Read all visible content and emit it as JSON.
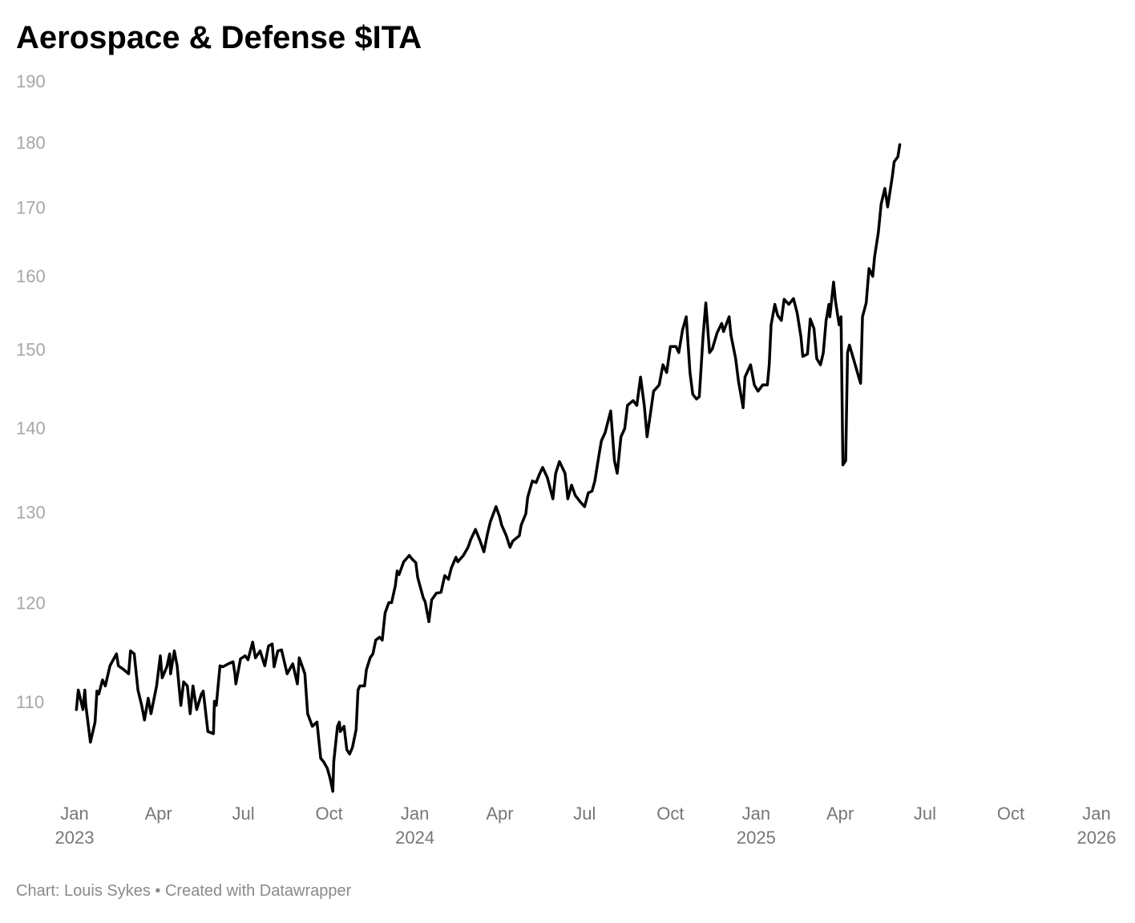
{
  "chart_data": {
    "type": "line",
    "title": "Aerospace & Defense $ITA",
    "footer": "Chart: Louis Sykes • Created with Datawrapper",
    "color": "#000000",
    "log_y": true,
    "grid": false,
    "xlim": [
      "2023-01",
      "2026-01"
    ],
    "xticks": [
      {
        "value": "2023-01",
        "label": "Jan\n2023"
      },
      {
        "value": "2023-04",
        "label": "Apr"
      },
      {
        "value": "2023-07",
        "label": "Jul"
      },
      {
        "value": "2023-10",
        "label": "Oct"
      },
      {
        "value": "2024-01",
        "label": "Jan\n2024"
      },
      {
        "value": "2024-04",
        "label": "Apr"
      },
      {
        "value": "2024-07",
        "label": "Jul"
      },
      {
        "value": "2024-10",
        "label": "Oct"
      },
      {
        "value": "2025-01",
        "label": "Jan\n2025"
      },
      {
        "value": "2025-04",
        "label": "Apr"
      },
      {
        "value": "2025-07",
        "label": "Jul"
      },
      {
        "value": "2025-10",
        "label": "Oct"
      },
      {
        "value": "2026-01",
        "label": "Jan\n2026"
      }
    ],
    "ylim": [
      101,
      190
    ],
    "yticks": [
      110,
      120,
      130,
      140,
      150,
      160,
      170,
      180,
      190
    ],
    "x": [
      "2023-01-03",
      "2023-01-05",
      "2023-01-10",
      "2023-01-12",
      "2023-01-13",
      "2023-01-18",
      "2023-01-23",
      "2023-01-25",
      "2023-01-27",
      "2023-01-31",
      "2023-02-03",
      "2023-02-08",
      "2023-02-15",
      "2023-02-17",
      "2023-02-23",
      "2023-02-28",
      "2023-03-02",
      "2023-03-06",
      "2023-03-10",
      "2023-03-14",
      "2023-03-17",
      "2023-03-21",
      "2023-03-24",
      "2023-03-30",
      "2023-04-03",
      "2023-04-05",
      "2023-04-10",
      "2023-04-13",
      "2023-04-14",
      "2023-04-18",
      "2023-04-21",
      "2023-04-25",
      "2023-04-28",
      "2023-05-02",
      "2023-05-05",
      "2023-05-08",
      "2023-05-12",
      "2023-05-17",
      "2023-05-19",
      "2023-05-24",
      "2023-05-30",
      "2023-05-31",
      "2023-06-02",
      "2023-06-06",
      "2023-06-09",
      "2023-06-15",
      "2023-06-20",
      "2023-06-22",
      "2023-06-23",
      "2023-06-28",
      "2023-07-03",
      "2023-07-06",
      "2023-07-11",
      "2023-07-14",
      "2023-07-19",
      "2023-07-24",
      "2023-07-28",
      "2023-08-01",
      "2023-08-03",
      "2023-08-07",
      "2023-08-11",
      "2023-08-17",
      "2023-08-23",
      "2023-08-28",
      "2023-08-30",
      "2023-09-05",
      "2023-09-08",
      "2023-09-13",
      "2023-09-18",
      "2023-09-22",
      "2023-09-25",
      "2023-09-29",
      "2023-10-02",
      "2023-10-05",
      "2023-10-06",
      "2023-10-10",
      "2023-10-12",
      "2023-10-13",
      "2023-10-17",
      "2023-10-20",
      "2023-10-23",
      "2023-10-26",
      "2023-10-30",
      "2023-11-01",
      "2023-11-03",
      "2023-11-08",
      "2023-11-10",
      "2023-11-14",
      "2023-11-17",
      "2023-11-20",
      "2023-11-24",
      "2023-11-27",
      "2023-11-30",
      "2023-12-04",
      "2023-12-07",
      "2023-12-11",
      "2023-12-13",
      "2023-12-15",
      "2023-12-20",
      "2023-12-26",
      "2023-12-29",
      "2024-01-02",
      "2024-01-04",
      "2024-01-10",
      "2024-01-12",
      "2024-01-16",
      "2024-01-19",
      "2024-01-24",
      "2024-01-29",
      "2024-02-02",
      "2024-02-06",
      "2024-02-09",
      "2024-02-14",
      "2024-02-16",
      "2024-02-22",
      "2024-02-27",
      "2024-03-01",
      "2024-03-06",
      "2024-03-11",
      "2024-03-15",
      "2024-03-19",
      "2024-03-22",
      "2024-03-28",
      "2024-04-01",
      "2024-04-03",
      "2024-04-08",
      "2024-04-12",
      "2024-04-15",
      "2024-04-22",
      "2024-04-24",
      "2024-04-29",
      "2024-05-01",
      "2024-05-06",
      "2024-05-10",
      "2024-05-14",
      "2024-05-17",
      "2024-05-22",
      "2024-05-28",
      "2024-05-31",
      "2024-06-04",
      "2024-06-10",
      "2024-06-13",
      "2024-06-17",
      "2024-06-21",
      "2024-06-26",
      "2024-07-01",
      "2024-07-05",
      "2024-07-09",
      "2024-07-12",
      "2024-07-16",
      "2024-07-19",
      "2024-07-23",
      "2024-07-29",
      "2024-08-02",
      "2024-08-05",
      "2024-08-09",
      "2024-08-13",
      "2024-08-16",
      "2024-08-22",
      "2024-08-26",
      "2024-08-30",
      "2024-09-03",
      "2024-09-06",
      "2024-09-10",
      "2024-09-13",
      "2024-09-19",
      "2024-09-23",
      "2024-09-27",
      "2024-10-01",
      "2024-10-07",
      "2024-10-10",
      "2024-10-14",
      "2024-10-18",
      "2024-10-22",
      "2024-10-25",
      "2024-10-29",
      "2024-11-01",
      "2024-11-05",
      "2024-11-08",
      "2024-11-12",
      "2024-11-15",
      "2024-11-20",
      "2024-11-25",
      "2024-11-27",
      "2024-12-03",
      "2024-12-05",
      "2024-12-10",
      "2024-12-13",
      "2024-12-18",
      "2024-12-20",
      "2024-12-26",
      "2024-12-30",
      "2025-01-03",
      "2025-01-08",
      "2025-01-13",
      "2025-01-15",
      "2025-01-17",
      "2025-01-21",
      "2025-01-24",
      "2025-01-28",
      "2025-01-31",
      "2025-02-05",
      "2025-02-10",
      "2025-02-14",
      "2025-02-18",
      "2025-02-20",
      "2025-02-25",
      "2025-02-28",
      "2025-03-04",
      "2025-03-07",
      "2025-03-11",
      "2025-03-14",
      "2025-03-17",
      "2025-03-20",
      "2025-03-21",
      "2025-03-25",
      "2025-03-27",
      "2025-03-31",
      "2025-04-02",
      "2025-04-04",
      "2025-04-07",
      "2025-04-09",
      "2025-04-11",
      "2025-04-16",
      "2025-04-21",
      "2025-04-23",
      "2025-04-25",
      "2025-04-29",
      "2025-05-02",
      "2025-05-06",
      "2025-05-08",
      "2025-05-12",
      "2025-05-15",
      "2025-05-19",
      "2025-05-22",
      "2025-05-27",
      "2025-05-29",
      "2025-06-02",
      "2025-06-04"
    ],
    "values": [
      109.4,
      111.3,
      109.4,
      111.3,
      109.9,
      106.3,
      108.2,
      111.2,
      110.9,
      112.3,
      111.7,
      113.7,
      114.9,
      113.7,
      113.3,
      112.9,
      115.2,
      114.9,
      111.3,
      109.8,
      108.4,
      110.5,
      109.0,
      111.7,
      114.7,
      112.5,
      113.6,
      114.9,
      112.9,
      115.2,
      113.7,
      109.8,
      112.1,
      111.7,
      109.0,
      111.7,
      109.4,
      110.9,
      111.2,
      107.3,
      107.1,
      110.2,
      109.8,
      113.7,
      113.6,
      113.9,
      114.1,
      112.9,
      111.9,
      114.4,
      114.7,
      114.3,
      116.1,
      114.5,
      115.2,
      113.7,
      115.7,
      115.9,
      113.6,
      115.2,
      115.3,
      112.9,
      113.9,
      111.9,
      114.5,
      112.9,
      109.0,
      107.8,
      108.2,
      104.8,
      104.5,
      103.9,
      103.0,
      101.8,
      104.5,
      107.8,
      108.2,
      107.3,
      107.8,
      105.6,
      105.2,
      105.8,
      107.5,
      111.3,
      111.7,
      111.7,
      113.3,
      114.5,
      114.9,
      116.3,
      116.6,
      116.3,
      119.1,
      120.2,
      120.2,
      122.0,
      123.6,
      123.2,
      124.6,
      125.3,
      124.9,
      124.5,
      122.9,
      120.7,
      120.3,
      118.2,
      120.5,
      121.2,
      121.3,
      123.1,
      122.7,
      123.9,
      125.1,
      124.6,
      125.3,
      126.2,
      127.1,
      128.2,
      126.9,
      125.7,
      127.8,
      129.1,
      130.8,
      129.6,
      128.7,
      127.5,
      126.2,
      126.9,
      127.5,
      128.7,
      130.0,
      131.9,
      133.8,
      133.6,
      134.7,
      135.4,
      134.2,
      131.7,
      134.7,
      136.1,
      134.7,
      131.7,
      133.3,
      132.1,
      131.4,
      130.8,
      132.4,
      132.6,
      133.8,
      136.6,
      138.6,
      139.6,
      142.3,
      136.2,
      134.7,
      139.1,
      140.1,
      143.0,
      143.6,
      143.0,
      146.6,
      143.0,
      139.1,
      142.3,
      144.8,
      145.6,
      148.2,
      147.2,
      150.6,
      150.6,
      149.8,
      152.8,
      154.6,
      147.2,
      144.4,
      143.8,
      144.1,
      151.9,
      156.5,
      149.8,
      150.3,
      152.4,
      153.7,
      152.6,
      154.6,
      152.1,
      149.0,
      146.1,
      142.7,
      146.6,
      148.2,
      145.6,
      144.8,
      145.6,
      145.6,
      148.2,
      153.5,
      156.3,
      154.8,
      154.1,
      157.0,
      156.3,
      157.1,
      155.1,
      151.9,
      149.3,
      149.6,
      154.3,
      153.0,
      149.0,
      148.2,
      149.8,
      154.1,
      156.3,
      154.6,
      159.4,
      156.8,
      153.5,
      154.6,
      135.7,
      136.2,
      149.8,
      150.8,
      148.7,
      146.6,
      145.8,
      154.6,
      156.5,
      161.3,
      160.2,
      163.0,
      166.5,
      170.7,
      173.1,
      170.3,
      174.9,
      177.2,
      178.0,
      179.9
    ]
  }
}
